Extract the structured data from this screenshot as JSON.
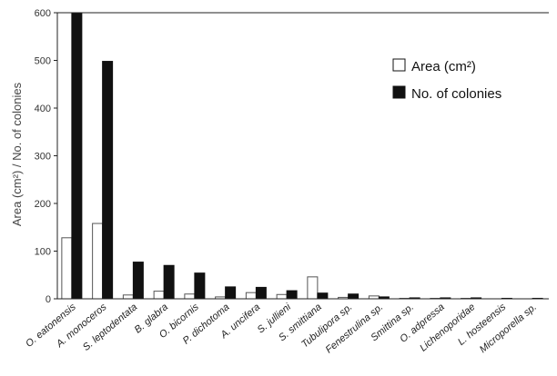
{
  "chart_data": {
    "type": "bar",
    "ylabel": "Area (cm²) / No. of colonies",
    "ylim": [
      0,
      600
    ],
    "yticks": [
      "0",
      "100",
      "200",
      "300",
      "400",
      "500",
      "600"
    ],
    "legend_position": "top-right",
    "grid": false,
    "categories": [
      "O. eatonensis",
      "A. monoceros",
      "S. leptodentata",
      "B. glabra",
      "O. bicornis",
      "P. dichotoma",
      "A. uncifera",
      "S. jullieni",
      "S. smittiana",
      "Tubulipora sp.",
      "Fenestrulina sp.",
      "Smittina sp.",
      "O. adpressa",
      "Lichenoporidae",
      "L. hosteensis",
      "Microporella sp."
    ],
    "series": [
      {
        "name": "Area (cm²)",
        "color": "#ffffff",
        "values": [
          128,
          158,
          8,
          16,
          10,
          4,
          13,
          9,
          46,
          3,
          6,
          1,
          1,
          1,
          0,
          0
        ]
      },
      {
        "name": "No. of colonies",
        "color": "#111111",
        "values": [
          600,
          498,
          77,
          70,
          54,
          25,
          24,
          17,
          12,
          10,
          4,
          2,
          2,
          2,
          1,
          1
        ]
      }
    ]
  }
}
